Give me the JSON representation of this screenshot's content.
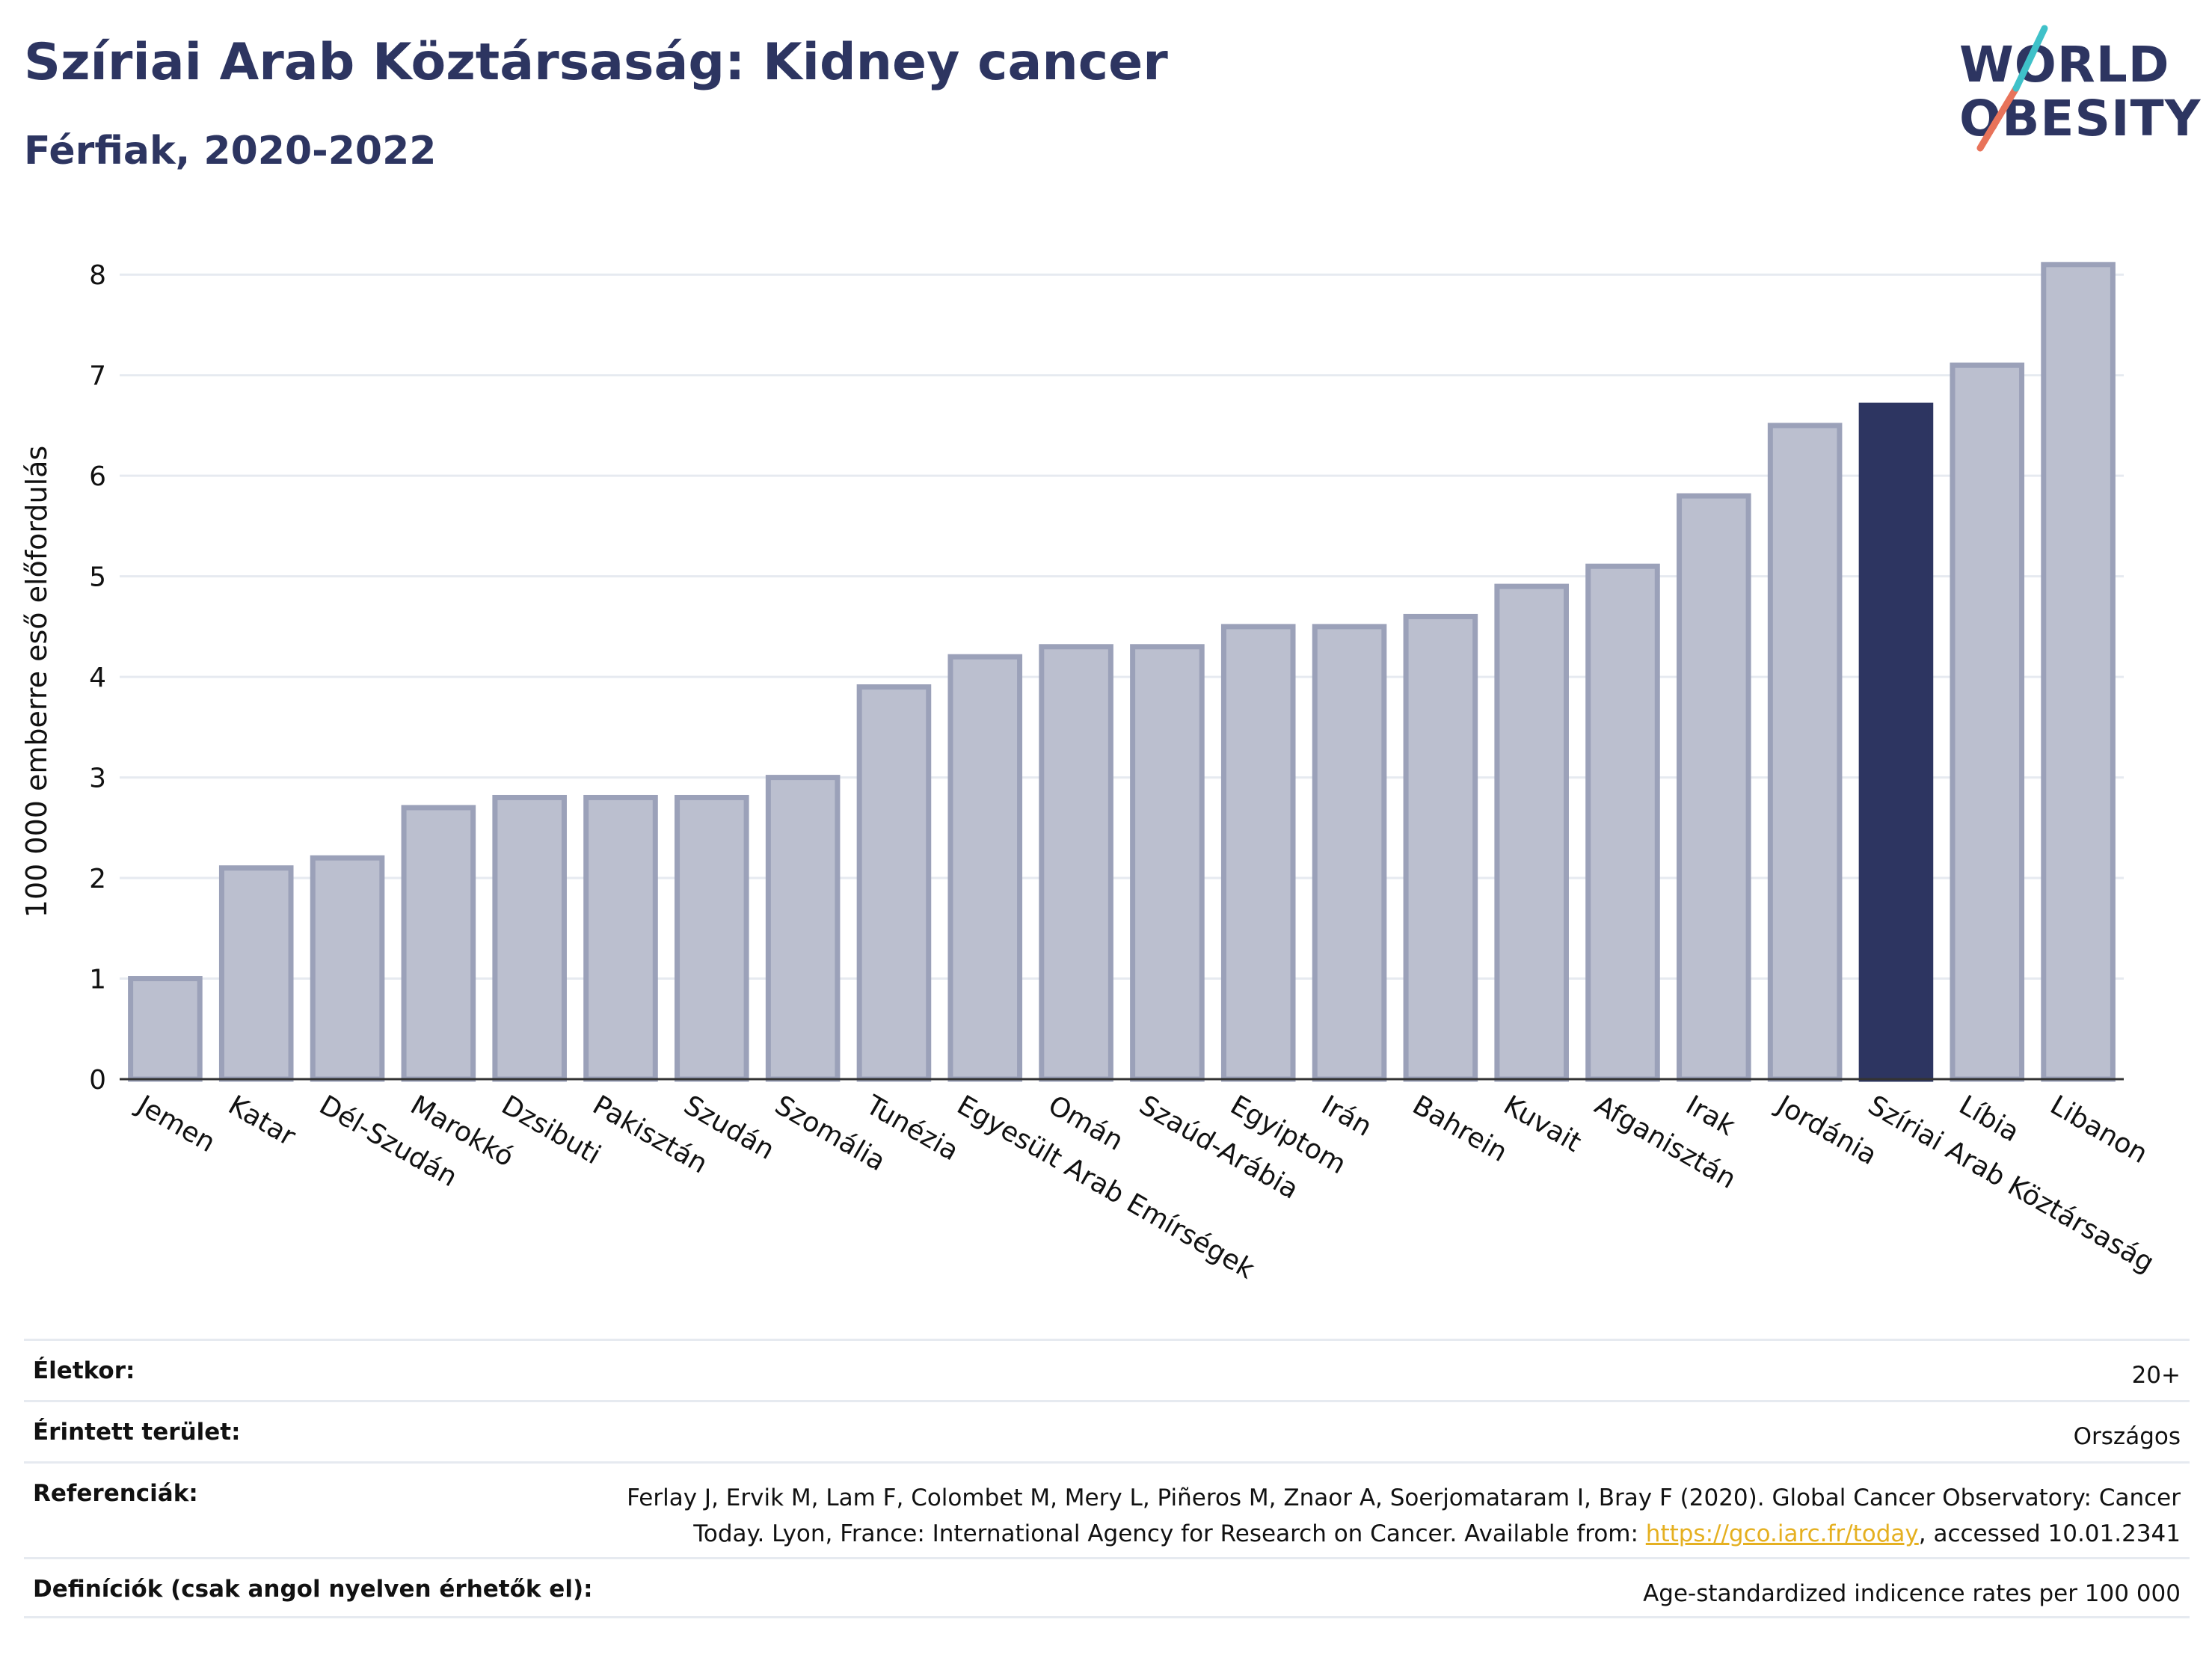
{
  "header": {
    "title": "Szíriai Arab Köztársaság: Kidney cancer",
    "subtitle": "Férfiak, 2020-2022"
  },
  "logo": {
    "line1": "WORLD",
    "line2": "OBESITY"
  },
  "colors": {
    "bar": "#bbbfcf",
    "bar_border": "#9ba1b9",
    "highlight": "#2d3561",
    "grid": "#e6eaf0",
    "text": "#2d3561",
    "logo_teal": "#3fc1c9",
    "logo_coral": "#e8735a"
  },
  "chart_data": {
    "type": "bar",
    "ylabel": "100 000 emberre eső előfordulás",
    "xlabel": "",
    "ylim": [
      0,
      8.5
    ],
    "yticks": [
      0,
      1,
      2,
      3,
      4,
      5,
      6,
      7,
      8
    ],
    "grid": true,
    "highlight": "Szíriai Arab Köztársaság",
    "categories": [
      "Jemen",
      "Katar",
      "Dél-Szudán",
      "Marokkó",
      "Dzsibuti",
      "Pakisztán",
      "Szudán",
      "Szomália",
      "Tunézia",
      "Egyesült Arab Emírségek",
      "Omán",
      "Szaúd-Arábia",
      "Egyiptom",
      "Irán",
      "Bahrein",
      "Kuvait",
      "Afganisztán",
      "Irak",
      "Jordánia",
      "Szíriai Arab Köztársaság",
      "Líbia",
      "Libanon"
    ],
    "values": [
      1.0,
      2.1,
      2.2,
      2.7,
      2.8,
      2.8,
      2.8,
      3.0,
      3.9,
      4.2,
      4.3,
      4.3,
      4.5,
      4.5,
      4.6,
      4.9,
      5.1,
      5.8,
      6.5,
      6.7,
      7.1,
      8.1
    ]
  },
  "info": {
    "age_label": "Életkor:",
    "age_value": "20+",
    "area_label": "Érintett terület:",
    "area_value": "Országos",
    "refs_label": "Referenciák:",
    "refs_text_1": "Ferlay J, Ervik M, Lam F, Colombet M, Mery L, Piñeros M, Znaor A, Soerjomataram I, Bray F (2020). Global Cancer Observatory: Cancer",
    "refs_text_2": "Today. Lyon, France: International Agency for Research on Cancer. Available from: ",
    "refs_link": "https://gco.iarc.fr/today",
    "refs_text_3": ", accessed 10.01.2341",
    "defs_label": "Definíciók (csak angol nyelven érhetők el):",
    "defs_value": "Age-standardized indicence rates per 100 000"
  }
}
